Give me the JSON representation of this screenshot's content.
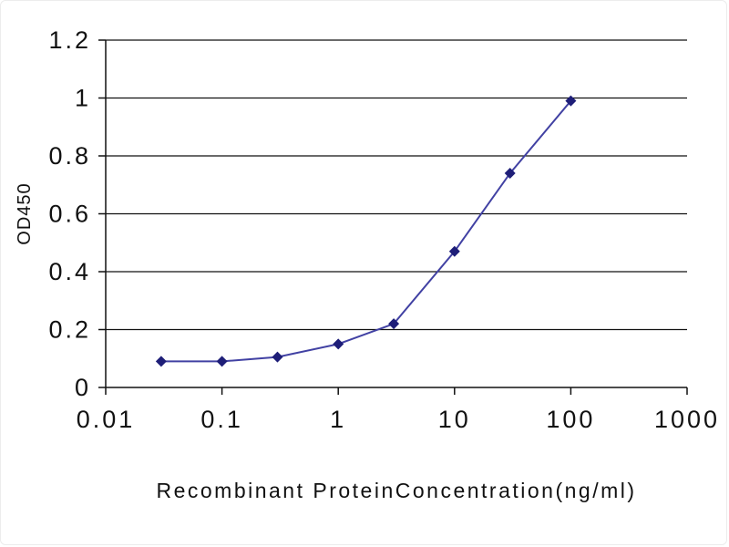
{
  "chart_data": {
    "type": "line",
    "title": "",
    "xlabel": "Recombinant ProteinConcentration(ng/ml)",
    "ylabel": "OD450",
    "x_scale": "log",
    "x": [
      0.03,
      0.1,
      0.3,
      1,
      3,
      10,
      30,
      100
    ],
    "y": [
      0.09,
      0.09,
      0.105,
      0.15,
      0.22,
      0.47,
      0.74,
      0.99
    ],
    "xlim": [
      0.01,
      1000
    ],
    "ylim": [
      0,
      1.2
    ],
    "x_ticks": [
      0.01,
      0.1,
      1,
      10,
      100,
      1000
    ],
    "x_tick_labels": [
      "0.01",
      "0.1",
      "1",
      "10",
      "100",
      "1000"
    ],
    "y_ticks": [
      0,
      0.2,
      0.4,
      0.6,
      0.8,
      1,
      1.2
    ],
    "y_tick_labels": [
      "0",
      "0.2",
      "0.4",
      "0.6",
      "0.8",
      "1",
      "1.2"
    ],
    "grid": "horizontal",
    "legend": "none",
    "line_color": "#4141a3",
    "marker": "diamond",
    "marker_color": "#1e1e78",
    "axis_color": "#111111"
  }
}
